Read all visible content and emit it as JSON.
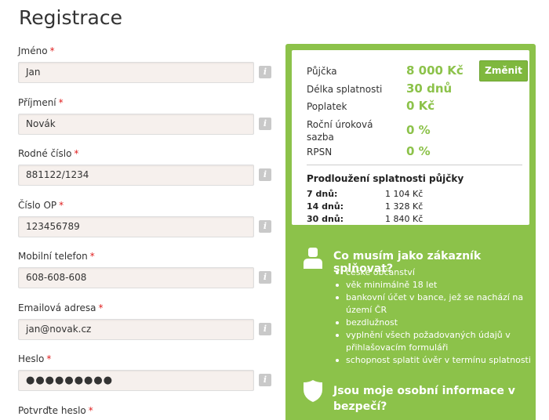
{
  "page": {
    "title": "Registrace"
  },
  "form": {
    "fields": [
      {
        "label": "Jméno",
        "required": "*",
        "value": "Jan",
        "info": "i"
      },
      {
        "label": "Příjmení",
        "required": "*",
        "value": "Novák",
        "info": "i"
      },
      {
        "label": "Rodné číslo",
        "required": "*",
        "value": "881122/1234",
        "info": "i"
      },
      {
        "label": "Číslo OP",
        "required": "*",
        "value": "123456789",
        "info": "i"
      },
      {
        "label": "Mobilní telefon",
        "required": "*",
        "value": "608-608-608",
        "info": "i"
      },
      {
        "label": "Emailová adresa",
        "required": "*",
        "value": "jan@novak.cz",
        "info": "i"
      },
      {
        "label": "Heslo",
        "required": "*",
        "value": "●●●●●●●●●",
        "info": "i"
      },
      {
        "label": "Potvrďte heslo",
        "required": "*"
      }
    ]
  },
  "summary": {
    "rows": [
      {
        "label": "Půjčka",
        "value": "8 000 Kč"
      },
      {
        "label": "Délka splatnosti",
        "value": "30 dnů"
      },
      {
        "label": "Poplatek",
        "value": "0 Kč"
      },
      {
        "label": "Roční úroková\nsazba",
        "value": "0 %"
      },
      {
        "label": "RPSN",
        "value": "0 %"
      }
    ],
    "change_label": "Změnit",
    "extension_title": "Prodloužení splatnosti půjčky",
    "extension": [
      {
        "days": "7 dnů:",
        "price": "1 104 Kč"
      },
      {
        "days": "14 dnů:",
        "price": "1 328 Kč"
      },
      {
        "days": "30 dnů:",
        "price": "1 840 Kč"
      }
    ]
  },
  "requirements": {
    "title": "Co musím jako zákazník splňovat?",
    "items": [
      "české občanství",
      "věk minimálně 18 let",
      "bankovní účet v bance, jež se nachází na území ČR",
      "bezdlužnost",
      "vyplnění všech požadovaných údajů v přihlašovacím formuláři",
      "schopnost splatit úvěr v termínu splatnosti"
    ]
  },
  "security": {
    "title": "Jsou moje osobní informace v bezpečí?"
  },
  "colors": {
    "accent": "#8cc24a",
    "button": "#7fb83e",
    "required": "#e02020"
  }
}
